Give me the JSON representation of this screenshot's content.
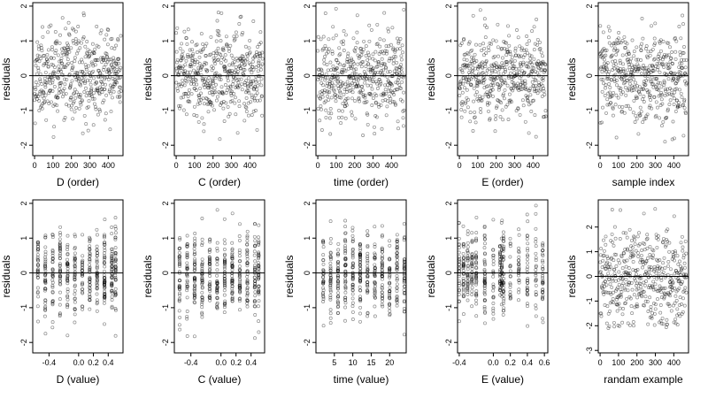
{
  "chart_data": [
    {
      "type": "scatter",
      "xlabel": "D (order)",
      "ylabel": "residuals",
      "xlim": [
        -10,
        480
      ],
      "ylim": [
        -2.3,
        2.1
      ],
      "xticks": [
        0,
        100,
        200,
        300,
        400
      ],
      "xticklabels": [
        "0",
        "100",
        "200",
        "300",
        "400"
      ],
      "yticks": [
        -2,
        -1,
        0,
        1,
        2
      ],
      "yticklabels": [
        "-2",
        "-1",
        "0",
        "1",
        "2"
      ],
      "zero_line": true,
      "x_kind": "uniform",
      "n_points": 470,
      "seed": 11
    },
    {
      "type": "scatter",
      "xlabel": "C (order)",
      "ylabel": "residuals",
      "xlim": [
        -10,
        480
      ],
      "ylim": [
        -2.3,
        2.1
      ],
      "xticks": [
        0,
        100,
        200,
        300,
        400
      ],
      "xticklabels": [
        "0",
        "100",
        "200",
        "300",
        "400"
      ],
      "yticks": [
        -2,
        -1,
        0,
        1,
        2
      ],
      "yticklabels": [
        "-2",
        "-1",
        "0",
        "1",
        "2"
      ],
      "zero_line": true,
      "x_kind": "uniform",
      "n_points": 470,
      "seed": 23
    },
    {
      "type": "scatter",
      "xlabel": "time (order)",
      "ylabel": "residuals",
      "xlim": [
        -10,
        480
      ],
      "ylim": [
        -2.3,
        2.1
      ],
      "xticks": [
        0,
        100,
        200,
        300,
        400
      ],
      "xticklabels": [
        "0",
        "100",
        "200",
        "300",
        "400"
      ],
      "yticks": [
        -2,
        -1,
        0,
        1,
        2
      ],
      "yticklabels": [
        "-2",
        "-1",
        "0",
        "1",
        "2"
      ],
      "zero_line": true,
      "x_kind": "uniform",
      "n_points": 470,
      "seed": 37
    },
    {
      "type": "scatter",
      "xlabel": "E (order)",
      "ylabel": "residuals",
      "xlim": [
        -10,
        480
      ],
      "ylim": [
        -2.3,
        2.1
      ],
      "xticks": [
        0,
        100,
        200,
        300,
        400
      ],
      "xticklabels": [
        "0",
        "100",
        "200",
        "300",
        "400"
      ],
      "yticks": [
        -2,
        -1,
        0,
        1,
        2
      ],
      "yticklabels": [
        "-2",
        "-1",
        "0",
        "1",
        "2"
      ],
      "zero_line": true,
      "x_kind": "uniform",
      "n_points": 470,
      "seed": 41
    },
    {
      "type": "scatter",
      "xlabel": "sample index",
      "ylabel": "residuals",
      "xlim": [
        -10,
        480
      ],
      "ylim": [
        -2.3,
        2.1
      ],
      "xticks": [
        0,
        100,
        200,
        300,
        400
      ],
      "xticklabels": [
        "0",
        "100",
        "200",
        "300",
        "400"
      ],
      "yticks": [
        -2,
        -1,
        0,
        1,
        2
      ],
      "yticklabels": [
        "-2",
        "-1",
        "0",
        "1",
        "2"
      ],
      "zero_line": true,
      "x_kind": "uniform",
      "n_points": 470,
      "seed": 53
    },
    {
      "type": "scatter",
      "xlabel": "D (value)",
      "ylabel": "residuals",
      "xlim": [
        -0.62,
        0.6
      ],
      "ylim": [
        -2.3,
        2.1
      ],
      "xticks": [
        -0.4,
        0.0,
        0.2,
        0.4
      ],
      "xticklabels": [
        "-0.4",
        "0.0",
        "0.2",
        "0.4"
      ],
      "yticks": [
        -2,
        -1,
        0,
        1,
        2
      ],
      "yticklabels": [
        "-2",
        "-1",
        "0",
        "1",
        "2"
      ],
      "zero_line": true,
      "x_kind": "discrete",
      "x_levels": [
        -0.55,
        -0.45,
        -0.35,
        -0.25,
        -0.15,
        -0.05,
        0.05,
        0.15,
        0.25,
        0.35,
        0.45,
        0.5
      ],
      "n_points": 470,
      "seed": 61
    },
    {
      "type": "scatter",
      "xlabel": "C (value)",
      "ylabel": "residuals",
      "xlim": [
        -0.62,
        0.58
      ],
      "ylim": [
        -2.3,
        2.1
      ],
      "xticks": [
        -0.4,
        0.0,
        0.2,
        0.4
      ],
      "xticklabels": [
        "-0.4",
        "0.0",
        "0.2",
        "0.4"
      ],
      "yticks": [
        -2,
        -1,
        0,
        1,
        2
      ],
      "yticklabels": [
        "-2",
        "-1",
        "0",
        "1",
        "2"
      ],
      "zero_line": true,
      "x_kind": "discrete",
      "x_levels": [
        -0.55,
        -0.45,
        -0.35,
        -0.25,
        -0.15,
        -0.05,
        0.05,
        0.15,
        0.25,
        0.35,
        0.45,
        0.5
      ],
      "n_points": 470,
      "seed": 71
    },
    {
      "type": "scatter",
      "xlabel": "time (value)",
      "ylabel": "residuals",
      "xlim": [
        0,
        24.5
      ],
      "ylim": [
        -2.3,
        2.1
      ],
      "xticks": [
        5,
        10,
        15,
        20
      ],
      "xticklabels": [
        "5",
        "10",
        "15",
        "20"
      ],
      "yticks": [
        -2,
        -1,
        0,
        1,
        2
      ],
      "yticklabels": [
        "-2",
        "-1",
        "0",
        "1",
        "2"
      ],
      "zero_line": true,
      "x_kind": "discrete",
      "x_levels": [
        2,
        4,
        6,
        8,
        10,
        12,
        14,
        16,
        18,
        20,
        22,
        24
      ],
      "n_points": 470,
      "seed": 83
    },
    {
      "type": "scatter",
      "xlabel": "E (value)",
      "ylabel": "residuals",
      "xlim": [
        -0.42,
        0.64
      ],
      "ylim": [
        -2.3,
        2.1
      ],
      "xticks": [
        -0.4,
        0.0,
        0.2,
        0.4,
        0.6
      ],
      "xticklabels": [
        "-0.4",
        "0.0",
        "0.2",
        "0.4",
        "0.6"
      ],
      "yticks": [
        -2,
        -1,
        0,
        1,
        2
      ],
      "yticklabels": [
        "-2",
        "-1",
        "0",
        "1",
        "2"
      ],
      "zero_line": true,
      "x_kind": "discrete",
      "x_levels": [
        -0.4,
        -0.35,
        -0.3,
        -0.25,
        -0.2,
        -0.1,
        0.0,
        0.08,
        0.1,
        0.12,
        0.2,
        0.3,
        0.4,
        0.5,
        0.58
      ],
      "n_points": 470,
      "seed": 97
    },
    {
      "type": "scatter",
      "xlabel": "randam example",
      "ylabel": "residuals",
      "xlim": [
        -10,
        480
      ],
      "ylim": [
        -3.1,
        3.1
      ],
      "xticks": [
        0,
        100,
        200,
        300,
        400
      ],
      "xticklabels": [
        "0",
        "100",
        "200",
        "300",
        "400"
      ],
      "yticks": [
        -3,
        -2,
        -1,
        0,
        1,
        2
      ],
      "yticklabels": [
        "-3",
        "-2",
        "-1",
        "0",
        "1",
        "2"
      ],
      "zero_line": true,
      "x_kind": "uniform",
      "n_points": 470,
      "seed": 109
    }
  ]
}
